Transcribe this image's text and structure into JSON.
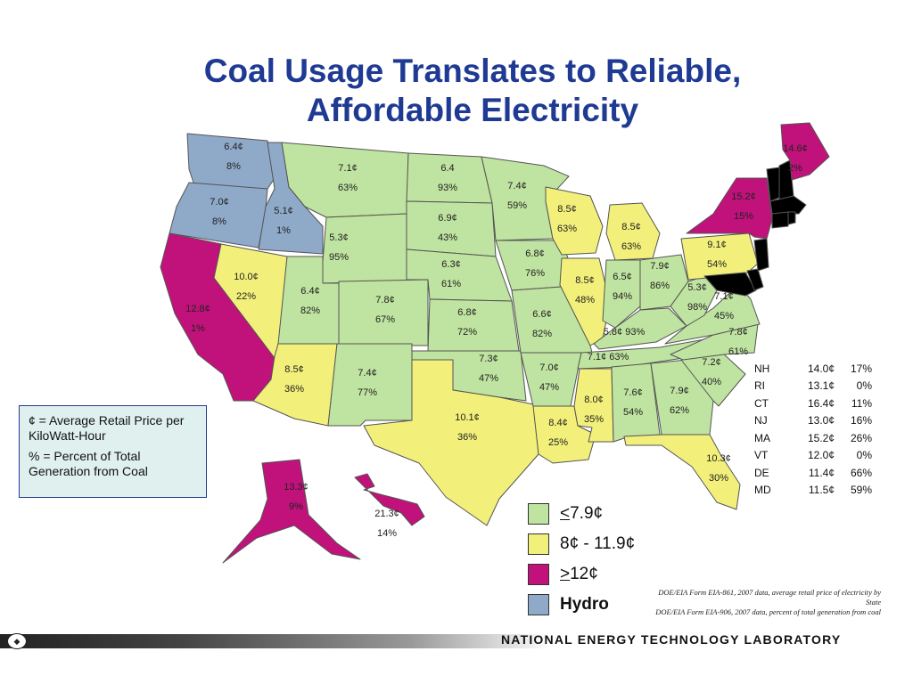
{
  "title_line1": "Coal Usage Translates to Reliable,",
  "title_line2": "Affordable Electricity",
  "colors": {
    "green": "#bfe3a0",
    "yellow": "#f2f07a",
    "magenta": "#c0127a",
    "hydro": "#8fa9c9"
  },
  "states": {
    "WA": {
      "price": "6.4¢",
      "pct": "8%",
      "cat": "hydro"
    },
    "OR": {
      "price": "7.0¢",
      "pct": "8%",
      "cat": "hydro"
    },
    "ID": {
      "price": "5.1¢",
      "pct": "1%",
      "cat": "hydro"
    },
    "CA": {
      "price": "12.8¢",
      "pct": "1%",
      "cat": "magenta"
    },
    "NV": {
      "price": "10.0¢",
      "pct": "22%",
      "cat": "yellow"
    },
    "MT": {
      "price": "7.1¢",
      "pct": "63%",
      "cat": "green"
    },
    "WY": {
      "price": "5.3¢",
      "pct": "95%",
      "cat": "green"
    },
    "UT": {
      "price": "6.4¢",
      "pct": "82%",
      "cat": "green"
    },
    "AZ": {
      "price": "8.5¢",
      "pct": "36%",
      "cat": "yellow"
    },
    "CO": {
      "price": "7.8¢",
      "pct": "67%",
      "cat": "green"
    },
    "NM": {
      "price": "7.4¢",
      "pct": "77%",
      "cat": "green"
    },
    "ND": {
      "price": "6.4",
      "pct": "93%",
      "cat": "green"
    },
    "SD": {
      "price": "6.9¢",
      "pct": "43%",
      "cat": "green"
    },
    "NE": {
      "price": "6.3¢",
      "pct": "61%",
      "cat": "green"
    },
    "KS": {
      "price": "6.8¢",
      "pct": "72%",
      "cat": "green"
    },
    "OK": {
      "price": "7.3¢",
      "pct": "47%",
      "cat": "green"
    },
    "TX": {
      "price": "10.1¢",
      "pct": "36%",
      "cat": "yellow"
    },
    "MN": {
      "price": "7.4¢",
      "pct": "59%",
      "cat": "green"
    },
    "IA": {
      "price": "6.8¢",
      "pct": "76%",
      "cat": "green"
    },
    "MO": {
      "price": "6.6¢",
      "pct": "82%",
      "cat": "green"
    },
    "AR": {
      "price": "7.0¢",
      "pct": "47%",
      "cat": "green"
    },
    "LA": {
      "price": "8.4¢",
      "pct": "25%",
      "cat": "yellow"
    },
    "WI": {
      "price": "8.5¢",
      "pct": "63%",
      "cat": "yellow"
    },
    "IL": {
      "price": "8.5¢",
      "pct": "48%",
      "cat": "yellow"
    },
    "MI": {
      "price": "8.5¢",
      "pct": "63%",
      "cat": "yellow"
    },
    "IN": {
      "price": "6.5¢",
      "pct": "94%",
      "cat": "green"
    },
    "OH": {
      "price": "7.9¢",
      "pct": "86%",
      "cat": "green"
    },
    "KY": {
      "price": "5.8¢",
      "pct": "93%",
      "cat": "green"
    },
    "TN": {
      "price": "7.1¢",
      "pct": "63%",
      "cat": "green"
    },
    "MS": {
      "price": "8.0¢",
      "pct": "35%",
      "cat": "yellow"
    },
    "AL": {
      "price": "7.6¢",
      "pct": "54%",
      "cat": "green"
    },
    "GA": {
      "price": "7.9¢",
      "pct": "62%",
      "cat": "green"
    },
    "FL": {
      "price": "10.3¢",
      "pct": "30%",
      "cat": "yellow"
    },
    "SC": {
      "price": "7.2¢",
      "pct": "40%",
      "cat": "green"
    },
    "NC": {
      "price": "7.8¢",
      "pct": "61%",
      "cat": "green"
    },
    "VA": {
      "price": "7.1¢",
      "pct": "45%",
      "cat": "green"
    },
    "WV": {
      "price": "5.3¢",
      "pct": "98%",
      "cat": "green"
    },
    "PA": {
      "price": "9.1¢",
      "pct": "54%",
      "cat": "yellow"
    },
    "NY": {
      "price": "15.2¢",
      "pct": "15%",
      "cat": "magenta"
    },
    "ME": {
      "price": "14.6¢",
      "pct": "2%",
      "cat": "magenta"
    },
    "AK": {
      "price": "13.3¢",
      "pct": "9%",
      "cat": "magenta"
    },
    "HI": {
      "price": "21.3¢",
      "pct": "14%",
      "cat": "magenta"
    }
  },
  "small_states": [
    {
      "state": "NH",
      "price": "14.0¢",
      "pct": "17%"
    },
    {
      "state": "RI",
      "price": "13.1¢",
      "pct": "0%"
    },
    {
      "state": "CT",
      "price": "16.4¢",
      "pct": "11%"
    },
    {
      "state": "NJ",
      "price": "13.0¢",
      "pct": "16%"
    },
    {
      "state": "MA",
      "price": "15.2¢",
      "pct": "26%"
    },
    {
      "state": "VT",
      "price": "12.0¢",
      "pct": "0%"
    },
    {
      "state": "DE",
      "price": "11.4¢",
      "pct": "66%"
    },
    {
      "state": "MD",
      "price": "11.5¢",
      "pct": "59%"
    }
  ],
  "note": {
    "line1": "¢ = Average Retail Price per KiloWatt-Hour",
    "line2": "% = Percent of Total Generation from Coal"
  },
  "legend": {
    "le_prefix": "<",
    "le_value": "7.9¢",
    "mid": "8¢ - 11.9¢",
    "ge_prefix": ">",
    "ge_value": "12¢",
    "hydro": "Hydro"
  },
  "source": {
    "line1": "DOE/EIA Form EIA-861, 2007 data, average retail price of electricity by State",
    "line2": "DOE/EIA Form EIA-906, 2007 data, percent of total generation from coal"
  },
  "footer": {
    "org": "NATIONAL ENERGY TECHNOLOGY LABORATORY"
  }
}
